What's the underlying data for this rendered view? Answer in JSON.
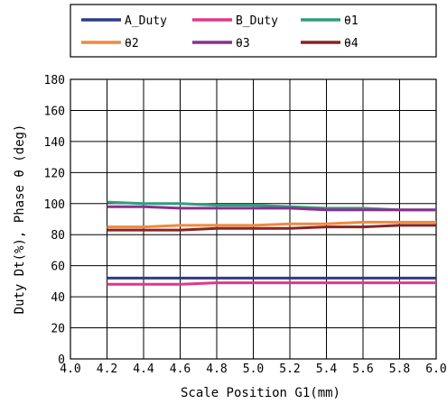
{
  "chart_data": {
    "type": "line",
    "title": "",
    "xlabel": "Scale Position G1(mm)",
    "ylabel": "Duty Dt(%), Phase θ (deg)",
    "xlim": [
      4.0,
      6.0
    ],
    "ylim": [
      0,
      180
    ],
    "xticks": [
      4.0,
      4.2,
      4.4,
      4.6,
      4.8,
      5.0,
      5.2,
      5.4,
      5.6,
      5.8,
      6.0
    ],
    "xtick_labels": [
      "4.0",
      "4.2",
      "4.4",
      "4.6",
      "4.8",
      "5.0",
      "5.2",
      "5.4",
      "5.6",
      "5.8",
      "6.0"
    ],
    "yticks": [
      0,
      20,
      40,
      60,
      80,
      100,
      120,
      140,
      160,
      180
    ],
    "ytick_labels": [
      "0",
      "20",
      "40",
      "60",
      "80",
      "100",
      "120",
      "140",
      "160",
      "180"
    ],
    "grid": true,
    "legend_position": "top",
    "x": [
      4.2,
      4.4,
      4.6,
      4.8,
      5.0,
      5.2,
      5.4,
      5.6,
      5.8,
      6.0
    ],
    "series": [
      {
        "name": "A_Duty",
        "color": "#2e3a87",
        "values": [
          52,
          52,
          52,
          52,
          52,
          52,
          52,
          52,
          52,
          52
        ]
      },
      {
        "name": "B_Duty",
        "color": "#e0388a",
        "values": [
          48,
          48,
          48,
          49,
          49,
          49,
          49,
          49,
          49,
          49
        ]
      },
      {
        "name": "θ1",
        "color": "#2e9e7e",
        "values": [
          101,
          100,
          100,
          99,
          99,
          98,
          97,
          97,
          96,
          96
        ]
      },
      {
        "name": "θ2",
        "color": "#ef8a3c",
        "values": [
          85,
          85,
          86,
          86,
          86,
          87,
          87,
          88,
          88,
          88
        ]
      },
      {
        "name": "θ3",
        "color": "#8a2f8f",
        "values": [
          98,
          98,
          97,
          97,
          97,
          97,
          96,
          96,
          96,
          96
        ]
      },
      {
        "name": "θ4",
        "color": "#8b2323",
        "values": [
          83,
          83,
          83,
          84,
          84,
          84,
          85,
          85,
          86,
          86
        ]
      }
    ]
  }
}
